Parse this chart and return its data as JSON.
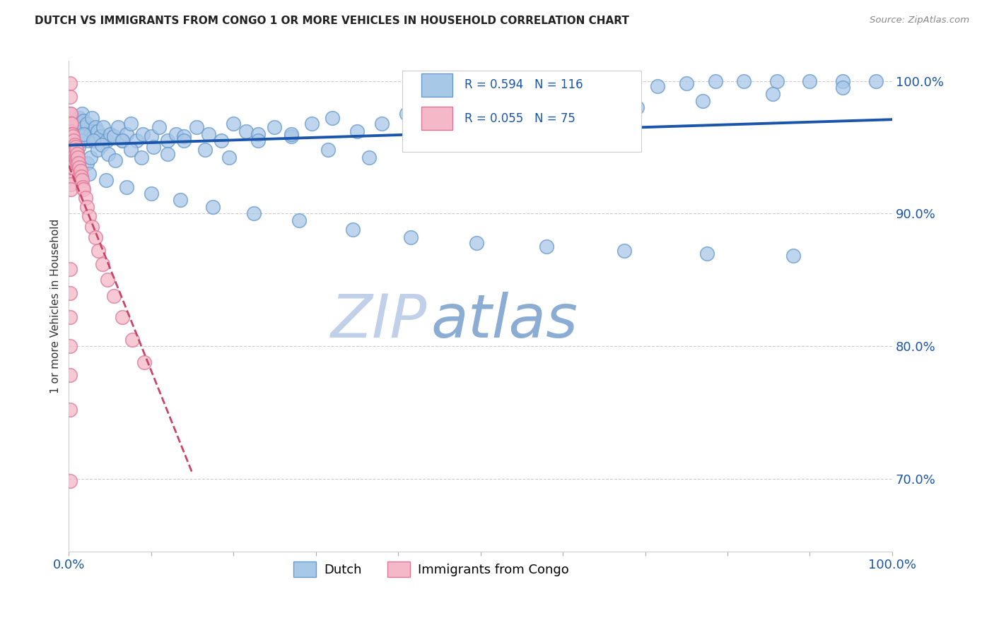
{
  "title": "DUTCH VS IMMIGRANTS FROM CONGO 1 OR MORE VEHICLES IN HOUSEHOLD CORRELATION CHART",
  "source_text": "Source: ZipAtlas.com",
  "ylabel": "1 or more Vehicles in Household",
  "xlim": [
    0.0,
    1.0
  ],
  "ylim": [
    0.645,
    1.015
  ],
  "xticks": [
    0.0,
    0.1,
    0.2,
    0.3,
    0.4,
    0.5,
    0.6,
    0.7,
    0.8,
    0.9,
    1.0
  ],
  "xticklabels": [
    "0.0%",
    "",
    "",
    "",
    "",
    "",
    "",
    "",
    "",
    "",
    "100.0%"
  ],
  "yticks_right": [
    0.7,
    0.8,
    0.9,
    1.0
  ],
  "yticklabels_right": [
    "70.0%",
    "80.0%",
    "90.0%",
    "100.0%"
  ],
  "blue_color": "#a8c8e8",
  "blue_edge_color": "#6699cc",
  "pink_color": "#f4b8c8",
  "pink_edge_color": "#dd7799",
  "blue_line_color": "#1a55aa",
  "pink_line_color": "#cc4466",
  "legend_blue_label": "Dutch",
  "legend_pink_label": "Immigrants from Congo",
  "watermark": "ZIPatlas",
  "watermark_color_zip": "#c0d0e8",
  "watermark_color_atlas": "#8badd4",
  "background_color": "#ffffff",
  "dutch_x": [
    0.004,
    0.005,
    0.006,
    0.007,
    0.008,
    0.009,
    0.01,
    0.011,
    0.012,
    0.013,
    0.014,
    0.015,
    0.016,
    0.017,
    0.018,
    0.019,
    0.02,
    0.022,
    0.024,
    0.026,
    0.028,
    0.03,
    0.032,
    0.035,
    0.038,
    0.042,
    0.046,
    0.05,
    0.055,
    0.06,
    0.065,
    0.07,
    0.075,
    0.082,
    0.09,
    0.1,
    0.11,
    0.12,
    0.13,
    0.14,
    0.155,
    0.17,
    0.185,
    0.2,
    0.215,
    0.23,
    0.25,
    0.27,
    0.295,
    0.32,
    0.35,
    0.38,
    0.41,
    0.44,
    0.47,
    0.5,
    0.53,
    0.56,
    0.59,
    0.62,
    0.65,
    0.68,
    0.715,
    0.75,
    0.785,
    0.82,
    0.86,
    0.9,
    0.94,
    0.98,
    0.008,
    0.01,
    0.012,
    0.015,
    0.018,
    0.022,
    0.026,
    0.03,
    0.035,
    0.04,
    0.048,
    0.056,
    0.065,
    0.075,
    0.088,
    0.103,
    0.12,
    0.14,
    0.165,
    0.195,
    0.23,
    0.27,
    0.315,
    0.365,
    0.42,
    0.48,
    0.545,
    0.615,
    0.69,
    0.77,
    0.855,
    0.94,
    0.025,
    0.045,
    0.07,
    0.1,
    0.135,
    0.175,
    0.225,
    0.28,
    0.345,
    0.415,
    0.495,
    0.58,
    0.675,
    0.775,
    0.88
  ],
  "dutch_y": [
    0.96,
    0.968,
    0.972,
    0.965,
    0.97,
    0.968,
    0.962,
    0.965,
    0.958,
    0.972,
    0.96,
    0.968,
    0.975,
    0.958,
    0.97,
    0.965,
    0.96,
    0.968,
    0.955,
    0.96,
    0.972,
    0.958,
    0.965,
    0.962,
    0.958,
    0.965,
    0.955,
    0.96,
    0.958,
    0.965,
    0.955,
    0.96,
    0.968,
    0.955,
    0.96,
    0.958,
    0.965,
    0.955,
    0.96,
    0.958,
    0.965,
    0.96,
    0.955,
    0.968,
    0.962,
    0.96,
    0.965,
    0.958,
    0.968,
    0.972,
    0.962,
    0.968,
    0.975,
    0.97,
    0.972,
    0.978,
    0.982,
    0.985,
    0.988,
    0.99,
    0.992,
    0.994,
    0.996,
    0.998,
    1.0,
    1.0,
    1.0,
    1.0,
    1.0,
    1.0,
    0.94,
    0.945,
    0.95,
    0.955,
    0.96,
    0.938,
    0.942,
    0.955,
    0.948,
    0.952,
    0.945,
    0.94,
    0.955,
    0.948,
    0.942,
    0.95,
    0.945,
    0.955,
    0.948,
    0.942,
    0.955,
    0.96,
    0.948,
    0.942,
    0.955,
    0.965,
    0.97,
    0.975,
    0.98,
    0.985,
    0.99,
    0.995,
    0.93,
    0.925,
    0.92,
    0.915,
    0.91,
    0.905,
    0.9,
    0.895,
    0.888,
    0.882,
    0.878,
    0.875,
    0.872,
    0.87,
    0.868
  ],
  "congo_x": [
    0.001,
    0.001,
    0.001,
    0.001,
    0.001,
    0.001,
    0.001,
    0.001,
    0.001,
    0.001,
    0.002,
    0.002,
    0.002,
    0.002,
    0.002,
    0.002,
    0.002,
    0.002,
    0.002,
    0.002,
    0.002,
    0.003,
    0.003,
    0.003,
    0.003,
    0.003,
    0.003,
    0.004,
    0.004,
    0.004,
    0.004,
    0.005,
    0.005,
    0.005,
    0.005,
    0.006,
    0.006,
    0.006,
    0.007,
    0.007,
    0.007,
    0.008,
    0.008,
    0.009,
    0.009,
    0.01,
    0.01,
    0.011,
    0.012,
    0.013,
    0.013,
    0.014,
    0.015,
    0.016,
    0.017,
    0.018,
    0.02,
    0.022,
    0.025,
    0.028,
    0.032,
    0.036,
    0.041,
    0.047,
    0.055,
    0.065,
    0.077,
    0.092,
    0.001,
    0.001,
    0.001,
    0.001,
    0.001,
    0.001,
    0.001
  ],
  "congo_y": [
    0.998,
    0.988,
    0.975,
    0.968,
    0.962,
    0.958,
    0.952,
    0.945,
    0.938,
    0.932,
    0.975,
    0.968,
    0.962,
    0.958,
    0.952,
    0.945,
    0.94,
    0.935,
    0.928,
    0.922,
    0.918,
    0.968,
    0.96,
    0.955,
    0.948,
    0.942,
    0.935,
    0.96,
    0.952,
    0.945,
    0.938,
    0.958,
    0.95,
    0.942,
    0.935,
    0.955,
    0.948,
    0.94,
    0.952,
    0.945,
    0.938,
    0.95,
    0.942,
    0.948,
    0.94,
    0.945,
    0.938,
    0.942,
    0.938,
    0.935,
    0.928,
    0.932,
    0.928,
    0.925,
    0.92,
    0.918,
    0.912,
    0.905,
    0.898,
    0.89,
    0.882,
    0.872,
    0.862,
    0.85,
    0.838,
    0.822,
    0.805,
    0.788,
    0.858,
    0.84,
    0.822,
    0.8,
    0.778,
    0.752,
    0.698
  ]
}
